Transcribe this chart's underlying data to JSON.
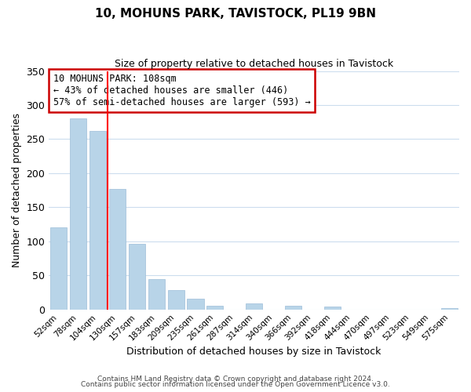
{
  "title": "10, MOHUNS PARK, TAVISTOCK, PL19 9BN",
  "subtitle": "Size of property relative to detached houses in Tavistock",
  "xlabel": "Distribution of detached houses by size in Tavistock",
  "ylabel": "Number of detached properties",
  "bar_labels": [
    "52sqm",
    "78sqm",
    "104sqm",
    "130sqm",
    "157sqm",
    "183sqm",
    "209sqm",
    "235sqm",
    "261sqm",
    "287sqm",
    "314sqm",
    "340sqm",
    "366sqm",
    "392sqm",
    "418sqm",
    "444sqm",
    "470sqm",
    "497sqm",
    "523sqm",
    "549sqm",
    "575sqm"
  ],
  "bar_values": [
    120,
    281,
    262,
    177,
    96,
    45,
    29,
    16,
    5,
    0,
    9,
    0,
    5,
    0,
    4,
    0,
    0,
    0,
    0,
    0,
    2
  ],
  "bar_color": "#b8d4e8",
  "bar_edge_color": "#9dbdd8",
  "grid_color": "#ccddee",
  "ylim": [
    0,
    350
  ],
  "yticks": [
    0,
    50,
    100,
    150,
    200,
    250,
    300,
    350
  ],
  "red_line_index": 2,
  "annotation_text": "10 MOHUNS PARK: 108sqm\n← 43% of detached houses are smaller (446)\n57% of semi-detached houses are larger (593) →",
  "annotation_box_color": "#ffffff",
  "annotation_box_edge_color": "#cc0000",
  "footer_line1": "Contains HM Land Registry data © Crown copyright and database right 2024.",
  "footer_line2": "Contains public sector information licensed under the Open Government Licence v3.0.",
  "background_color": "#ffffff"
}
